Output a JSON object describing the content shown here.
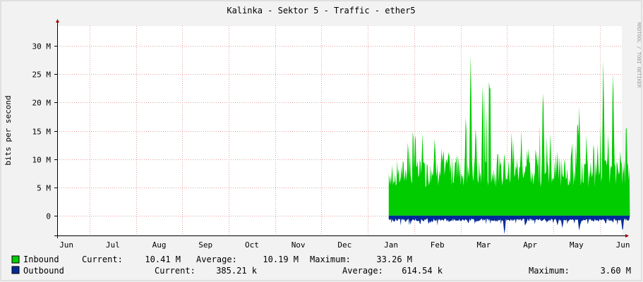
{
  "chart_data": {
    "type": "area",
    "title": "Kalinka - Sektor 5 - Traffic - ether5",
    "ylabel": "bits per second",
    "watermark": "RRDTOOL / TOBI OETIKER",
    "ylim": [
      -3500000,
      33500000
    ],
    "y_ticks": [
      {
        "value": 0,
        "label": "0"
      },
      {
        "value": 5000000,
        "label": "5 M"
      },
      {
        "value": 10000000,
        "label": "10 M"
      },
      {
        "value": 15000000,
        "label": "15 M"
      },
      {
        "value": 20000000,
        "label": "20 M"
      },
      {
        "value": 25000000,
        "label": "25 M"
      },
      {
        "value": 30000000,
        "label": "30 M"
      }
    ],
    "x_months": [
      "Jun",
      "Jul",
      "Aug",
      "Sep",
      "Oct",
      "Nov",
      "Dec",
      "Jan",
      "Feb",
      "Mar",
      "Apr",
      "May",
      "Jun"
    ],
    "data_start_month_index": 7.15,
    "data_end_month_index": 12.35,
    "grid": true,
    "colors": {
      "inbound": "#00cc00",
      "outbound": "#002a97",
      "grid": "#e8a0a0",
      "axis": "#000000",
      "background": "#ffffff",
      "frame": "#f2f2f2"
    },
    "series": [
      {
        "name": "Inbound",
        "color": "#00cc00",
        "current": "10.41 M",
        "average": "10.19 M",
        "maximum": "33.26 M",
        "baseline": 7500000,
        "spikes": [
          {
            "pos": 0.0,
            "value": 7500000
          },
          {
            "pos": 0.02,
            "value": 5000000
          },
          {
            "pos": 0.05,
            "value": 7000000
          },
          {
            "pos": 0.08,
            "value": 14500000
          },
          {
            "pos": 0.11,
            "value": 16500000
          },
          {
            "pos": 0.14,
            "value": 15500000
          },
          {
            "pos": 0.16,
            "value": 10000000
          },
          {
            "pos": 0.19,
            "value": 14000000
          },
          {
            "pos": 0.22,
            "value": 12500000
          },
          {
            "pos": 0.25,
            "value": 13000000
          },
          {
            "pos": 0.28,
            "value": 12000000
          },
          {
            "pos": 0.32,
            "value": 19500000
          },
          {
            "pos": 0.34,
            "value": 30000000
          },
          {
            "pos": 0.36,
            "value": 15500000
          },
          {
            "pos": 0.39,
            "value": 25000000
          },
          {
            "pos": 0.42,
            "value": 27000000
          },
          {
            "pos": 0.45,
            "value": 12000000
          },
          {
            "pos": 0.48,
            "value": 11000000
          },
          {
            "pos": 0.51,
            "value": 16000000
          },
          {
            "pos": 0.55,
            "value": 15500000
          },
          {
            "pos": 0.58,
            "value": 12500000
          },
          {
            "pos": 0.61,
            "value": 13500000
          },
          {
            "pos": 0.64,
            "value": 24500000
          },
          {
            "pos": 0.67,
            "value": 15000000
          },
          {
            "pos": 0.7,
            "value": 12000000
          },
          {
            "pos": 0.73,
            "value": 11500000
          },
          {
            "pos": 0.76,
            "value": 14500000
          },
          {
            "pos": 0.79,
            "value": 20000000
          },
          {
            "pos": 0.82,
            "value": 15000000
          },
          {
            "pos": 0.85,
            "value": 14500000
          },
          {
            "pos": 0.89,
            "value": 28000000
          },
          {
            "pos": 0.91,
            "value": 15000000
          },
          {
            "pos": 0.93,
            "value": 27500000
          },
          {
            "pos": 0.96,
            "value": 11500000
          },
          {
            "pos": 0.985,
            "value": 18500000
          },
          {
            "pos": 1.0,
            "value": 10000000
          }
        ]
      },
      {
        "name": "Outbound",
        "color": "#002a97",
        "current": "385.21 k",
        "average": "614.54 k",
        "maximum": "3.60 M",
        "baseline": -500000,
        "dips": [
          {
            "pos": 0.07,
            "value": -1200000
          },
          {
            "pos": 0.13,
            "value": -1600000
          },
          {
            "pos": 0.25,
            "value": -1300000
          },
          {
            "pos": 0.33,
            "value": -1500000
          },
          {
            "pos": 0.45,
            "value": -1200000
          },
          {
            "pos": 0.48,
            "value": -3300000
          },
          {
            "pos": 0.57,
            "value": -1400000
          },
          {
            "pos": 0.7,
            "value": -1800000
          },
          {
            "pos": 0.72,
            "value": -2200000
          },
          {
            "pos": 0.79,
            "value": -2700000
          },
          {
            "pos": 0.85,
            "value": -1200000
          },
          {
            "pos": 0.9,
            "value": -1600000
          },
          {
            "pos": 0.97,
            "value": -2900000
          }
        ]
      }
    ],
    "legend": {
      "current_label": "Current:",
      "average_label": "Average:",
      "maximum_label": "Maximum:"
    }
  }
}
